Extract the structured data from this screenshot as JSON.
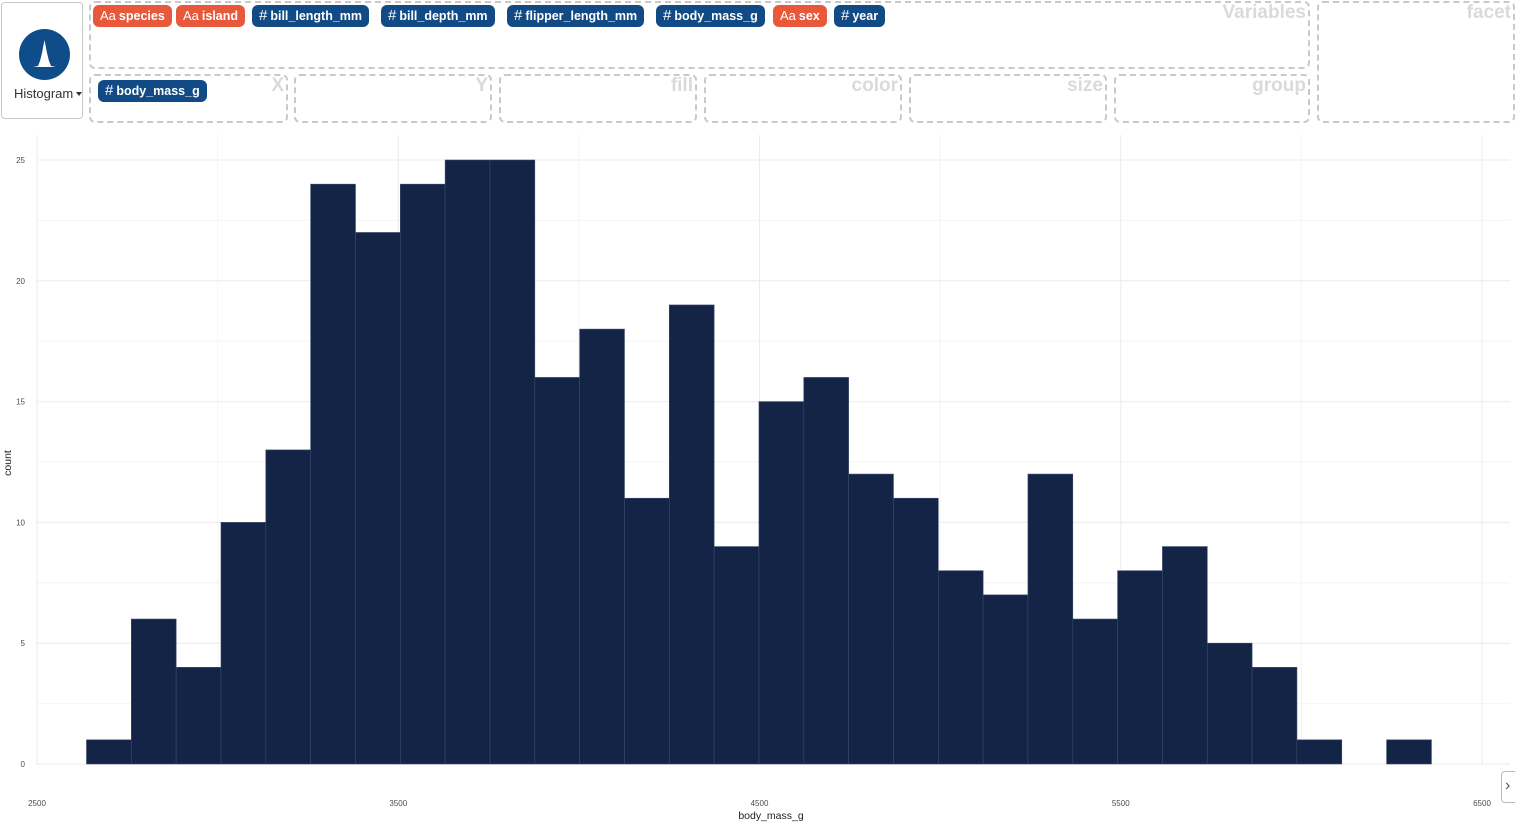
{
  "geom": {
    "label": "Histogram",
    "icon": "histogram-icon"
  },
  "variables": [
    {
      "name": "species",
      "kind": "cat",
      "icon": "Aa"
    },
    {
      "name": "island",
      "kind": "cat",
      "icon": "Aa"
    },
    {
      "name": "bill_length_mm",
      "kind": "num",
      "icon": "#"
    },
    {
      "name": "bill_depth_mm",
      "kind": "num",
      "icon": "#"
    },
    {
      "name": "flipper_length_mm",
      "kind": "num",
      "icon": "#"
    },
    {
      "name": "body_mass_g",
      "kind": "num",
      "icon": "#"
    },
    {
      "name": "sex",
      "kind": "cat",
      "icon": "Aa"
    },
    {
      "name": "year",
      "kind": "num",
      "icon": "#"
    }
  ],
  "zones": {
    "variables": "Variables",
    "facet": "facet",
    "x": "X",
    "y": "Y",
    "fill": "fill",
    "color": "color",
    "size": "size",
    "group": "group"
  },
  "mapped": {
    "x": {
      "name": "body_mass_g",
      "icon": "#"
    }
  },
  "colors": {
    "bar_fill": "#132447",
    "bar_edge": "#3a4a6a",
    "numeric_pill": "#114a85",
    "categorical_pill": "#e8583a",
    "grid": "#ebebeb"
  },
  "chart_data": {
    "type": "bar",
    "xlabel": "body_mass_g",
    "ylabel": "count",
    "xlim": [
      2500,
      6500
    ],
    "ylim": [
      0,
      25
    ],
    "x_ticks": [
      2500,
      3500,
      4500,
      5500,
      6500
    ],
    "y_ticks": [
      0,
      5,
      10,
      15,
      20,
      25
    ],
    "bin_width": 124.1,
    "bin_start": 2637,
    "counts": [
      1,
      6,
      4,
      10,
      13,
      24,
      22,
      24,
      25,
      25,
      16,
      18,
      11,
      19,
      9,
      15,
      16,
      12,
      11,
      8,
      7,
      12,
      6,
      8,
      9,
      5,
      4,
      1,
      0,
      1
    ],
    "grid": true
  }
}
